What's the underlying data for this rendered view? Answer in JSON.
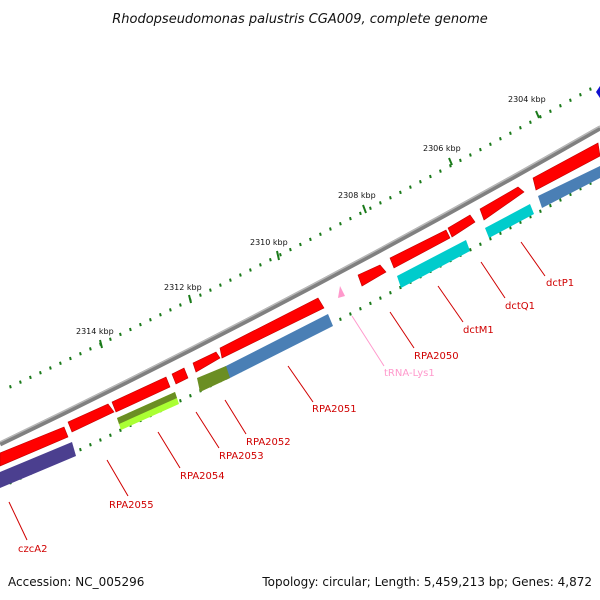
{
  "title": "Rhodopseudomonas palustris CGA009, complete genome",
  "accession": "Accession: NC_005296",
  "summary": "Topology: circular; Length: 5,459,213 bp; Genes: 4,872",
  "colors": {
    "gene_forward": "#ff0000",
    "gene_cog_blue": "#4a7fb5",
    "gene_cog_cyan": "#00cccc",
    "gene_cog_olive": "#6b8e23",
    "gene_cog_lime": "#aaff33",
    "gene_cog_purple": "#4b3f8f",
    "trna": "#ff99cc",
    "backbone": "#888888",
    "ticks": "#1a7a1a",
    "label": "#d00000"
  },
  "scale_ticks": [
    "2304 kbp",
    "2306 kbp",
    "2308 kbp",
    "2310 kbp",
    "2312 kbp",
    "2314 kbp"
  ],
  "gene_labels": [
    "dctP1",
    "dctQ1",
    "dctM1",
    "RPA2050",
    "tRNA-Lys1",
    "RPA2051",
    "RPA2052",
    "RPA2053",
    "RPA2054",
    "RPA2055",
    "czcA2"
  ]
}
